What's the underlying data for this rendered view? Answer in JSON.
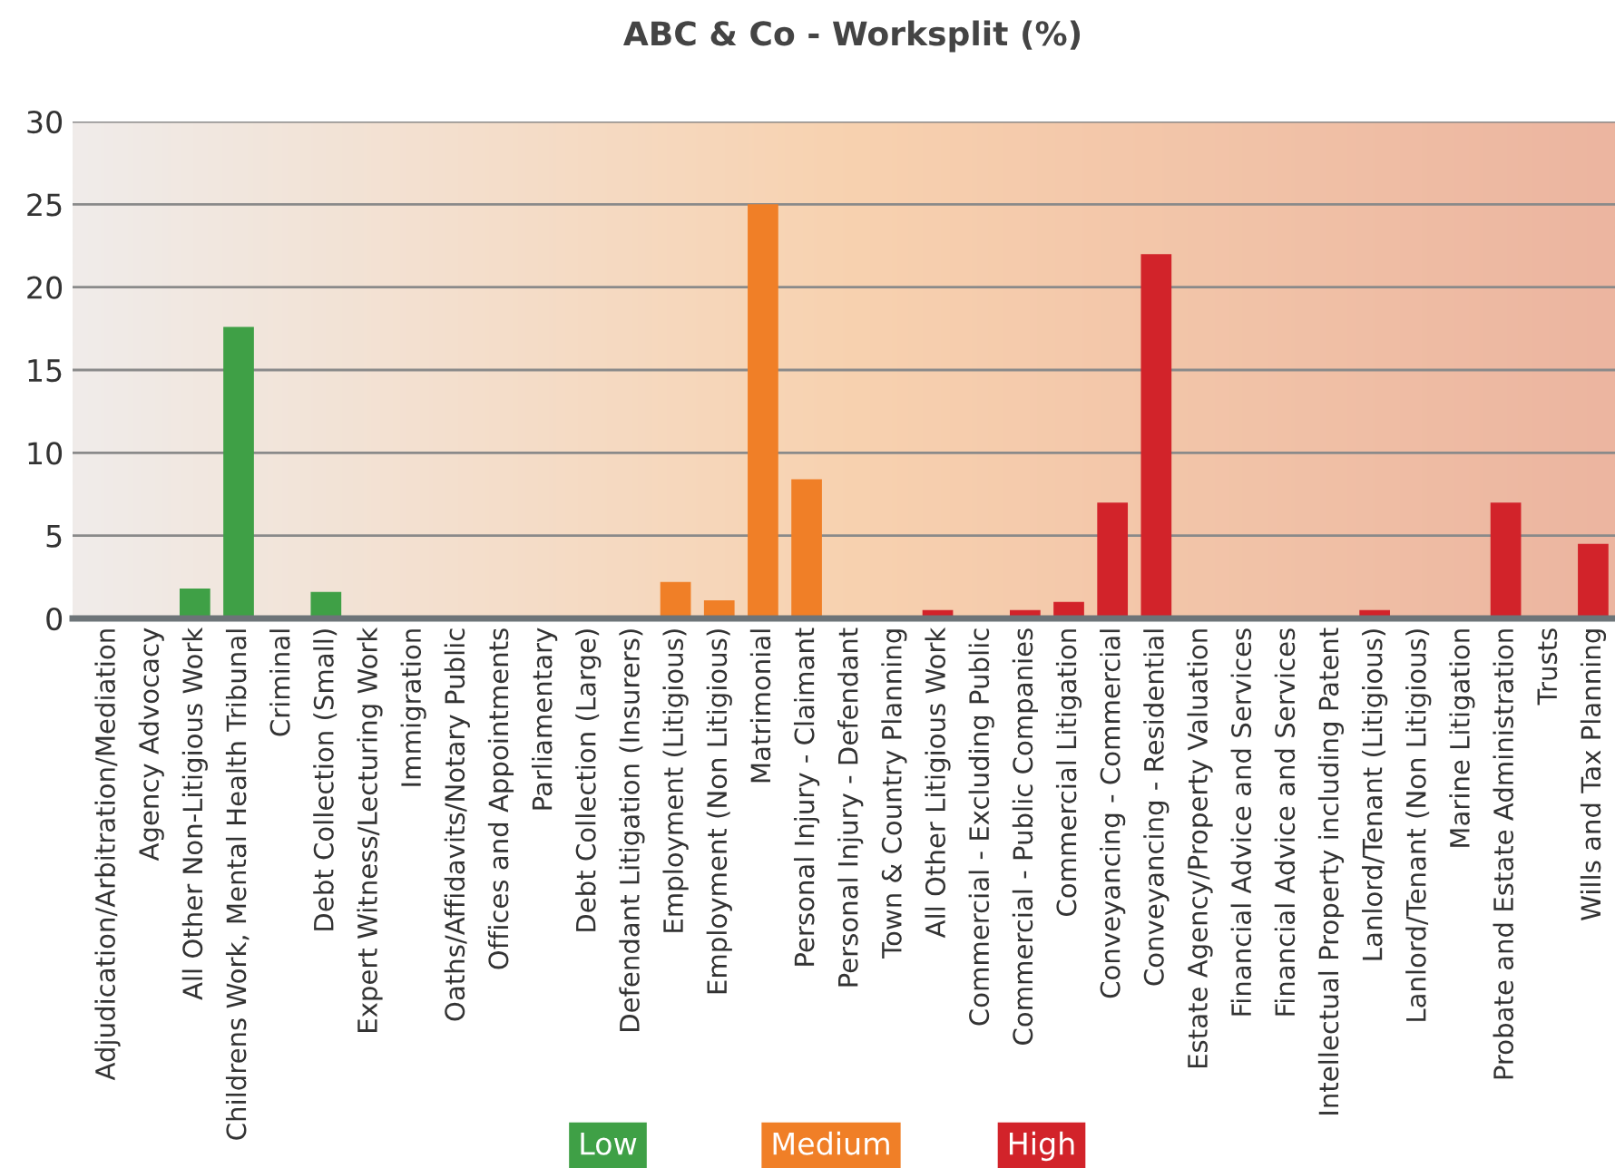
{
  "chart_data": {
    "type": "bar",
    "title": "ABC & Co - Worksplit (%)",
    "categories": [
      "Adjudication/Arbitration/Mediation",
      "Agency Advocacy",
      "All Other Non-Litigious Work",
      "Childrens Work, Mental Health Tribunal",
      "Criminal",
      "Debt Collection (Small)",
      "Expert Witness/Lecturing Work",
      "Immigration",
      "Oaths/Affidavits/Notary Public",
      "Offices and Appointments",
      "Parliamentary",
      "Debt Collection (Large)",
      "Defendant Litigation (Insurers)",
      "Employment (Litigious)",
      "Employment (Non Litigious)",
      "Matrimonial",
      "Personal Injury - Claimant",
      "Personal Injury - Defendant",
      "Town & Country Planning",
      "All Other Litigious Work",
      "Commercial - Excluding Public",
      "Commercial - Public Companies",
      "Commercial Litigation",
      "Conveyancing - Commercial",
      "Conveyancing - Residential",
      "Estate Agency/Property Valuation",
      "Financial Advice and Services",
      "Financial Advice and Services",
      "Intellectual Property including Patent",
      "Lanlord/Tenant (Litigious)",
      "Lanlord/Tenant (Non Litigious)",
      "Marine Litigation",
      "Probate and Estate Administration",
      "Trusts",
      "Wills and Tax Planning"
    ],
    "series": [
      {
        "name": "Low",
        "color": "#3fa046",
        "values": [
          0,
          0,
          1.8,
          17.6,
          0,
          1.6,
          0,
          0,
          0,
          0,
          0,
          0,
          0,
          null,
          null,
          null,
          null,
          null,
          null,
          null,
          null,
          null,
          null,
          null,
          null,
          null,
          null,
          null,
          null,
          null,
          null,
          null,
          null,
          null,
          null
        ]
      },
      {
        "name": "Medium",
        "color": "#f07f27",
        "values": [
          null,
          null,
          null,
          null,
          null,
          null,
          null,
          null,
          null,
          null,
          null,
          null,
          null,
          2.2,
          1.1,
          25,
          8.4,
          0,
          0,
          null,
          null,
          null,
          null,
          null,
          null,
          null,
          null,
          null,
          null,
          null,
          null,
          null,
          null,
          null,
          null
        ]
      },
      {
        "name": "High",
        "color": "#d2232a",
        "values": [
          null,
          null,
          null,
          null,
          null,
          null,
          null,
          null,
          null,
          null,
          null,
          null,
          null,
          null,
          null,
          null,
          null,
          null,
          null,
          0.5,
          0,
          0.5,
          1.0,
          7.0,
          22,
          0,
          0,
          0,
          0,
          0.5,
          0,
          0,
          7.0,
          0,
          4.5
        ]
      }
    ],
    "ylim": [
      0,
      30
    ],
    "yticks": [
      0,
      5,
      10,
      15,
      20,
      25,
      30
    ],
    "grid": "y",
    "legend": "bottom"
  }
}
